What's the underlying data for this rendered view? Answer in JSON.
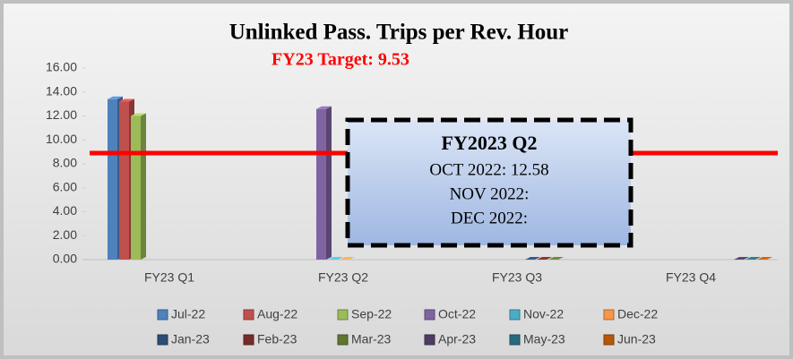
{
  "chart_data": {
    "type": "bar",
    "title": "Unlinked Pass. Trips per Rev. Hour",
    "subtitle": "FY23 Target: 9.53",
    "categories": [
      "FY23 Q1",
      "FY23 Q2",
      "FY23 Q3",
      "FY23 Q4"
    ],
    "series": [
      {
        "name": "Jul-22",
        "color": "#4f81bd",
        "values": [
          13.4,
          null,
          null,
          null
        ]
      },
      {
        "name": "Aug-22",
        "color": "#c0504d",
        "values": [
          13.2,
          null,
          null,
          null
        ]
      },
      {
        "name": "Sep-22",
        "color": "#9bbb59",
        "values": [
          12.0,
          null,
          null,
          null
        ]
      },
      {
        "name": "Oct-22",
        "color": "#8064a2",
        "values": [
          null,
          12.58,
          null,
          null
        ]
      },
      {
        "name": "Nov-22",
        "color": "#4bacc6",
        "values": [
          null,
          0,
          null,
          null
        ]
      },
      {
        "name": "Dec-22",
        "color": "#f79646",
        "values": [
          null,
          0,
          null,
          null
        ]
      },
      {
        "name": "Jan-23",
        "color": "#2c4d75",
        "values": [
          null,
          null,
          0,
          null
        ]
      },
      {
        "name": "Feb-23",
        "color": "#772c2a",
        "values": [
          null,
          null,
          0,
          null
        ]
      },
      {
        "name": "Mar-23",
        "color": "#5f7530",
        "values": [
          null,
          null,
          0,
          null
        ]
      },
      {
        "name": "Apr-23",
        "color": "#4d3b62",
        "values": [
          null,
          null,
          null,
          0
        ]
      },
      {
        "name": "May-23",
        "color": "#276a7c",
        "values": [
          null,
          null,
          null,
          0
        ]
      },
      {
        "name": "Jun-23",
        "color": "#b65708",
        "values": [
          null,
          null,
          null,
          0
        ]
      }
    ],
    "ylim": [
      0,
      16
    ],
    "yticks": [
      {
        "value": 0,
        "label": "0.00"
      },
      {
        "value": 2,
        "label": "2.00"
      },
      {
        "value": 4,
        "label": "4.00"
      },
      {
        "value": 6,
        "label": "6.00"
      },
      {
        "value": 8,
        "label": "8.00"
      },
      {
        "value": 10,
        "label": "10.00"
      },
      {
        "value": 12,
        "label": "12.00"
      },
      {
        "value": 14,
        "label": "14.00"
      },
      {
        "value": 16,
        "label": "16.00"
      }
    ],
    "reference_line": {
      "value": 8.9,
      "color": "#ff0000"
    },
    "annotation": {
      "title": "FY2023 Q2",
      "lines": [
        "OCT 2022: 12.58",
        "NOV 2022:",
        "DEC 2022:"
      ]
    }
  }
}
